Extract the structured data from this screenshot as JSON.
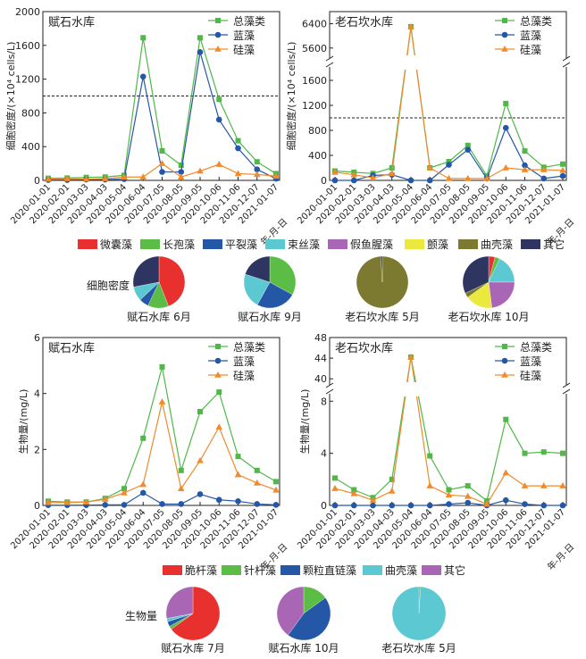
{
  "x_axis": {
    "dates": [
      "2020-01-01",
      "2020-02-01",
      "2020-03-03",
      "2020-04-03",
      "2020-05-04",
      "2020-06-04",
      "2020-07-05",
      "2020-08-05",
      "2020-09-05",
      "2020-10-06",
      "2020-11-06",
      "2020-12-07",
      "2021-01-07"
    ],
    "unit_label": "年-月-日"
  },
  "legend_top": [
    {
      "name": "微囊藻",
      "color": "#e8312f"
    },
    {
      "name": "长孢藻",
      "color": "#5bbd45"
    },
    {
      "name": "平裂藻",
      "color": "#2557a7"
    },
    {
      "name": "束丝藻",
      "color": "#5cc8d2"
    },
    {
      "name": "假鱼腥藻",
      "color": "#a866b4"
    },
    {
      "name": "颤藻",
      "color": "#ebe83e"
    },
    {
      "name": "曲壳藻",
      "color": "#7c7a30"
    },
    {
      "name": "其它",
      "color": "#2d3560"
    }
  ],
  "legend_bottom": [
    {
      "name": "脆杆藻",
      "color": "#e8312f"
    },
    {
      "name": "针杆藻",
      "color": "#5bbd45"
    },
    {
      "name": "颗粒直链藻",
      "color": "#2557a7"
    },
    {
      "name": "曲壳藻",
      "color": "#5cc8d2"
    },
    {
      "name": "其它",
      "color": "#a866b4"
    }
  ],
  "pie_row_labels": {
    "density": "细胞密度",
    "biomass": "生物量"
  },
  "chart_data": [
    {
      "type": "line",
      "title": "赋石水库",
      "ylabel": "细胞密度/(×10⁴ cells/L)",
      "ylim": [
        0,
        2000
      ],
      "yticks": [
        0,
        400,
        800,
        1200,
        1600,
        2000
      ],
      "threshold": 1000,
      "categories": [
        "2020-01-01",
        "2020-02-01",
        "2020-03-03",
        "2020-04-03",
        "2020-05-04",
        "2020-06-04",
        "2020-07-05",
        "2020-08-05",
        "2020-09-05",
        "2020-10-06",
        "2020-11-06",
        "2020-12-07",
        "2021-01-07"
      ],
      "series": [
        {
          "name": "总藻类",
          "color": "#4fb848",
          "marker": "square",
          "values": [
            25,
            28,
            35,
            40,
            60,
            1690,
            350,
            180,
            1690,
            960,
            470,
            220,
            80
          ]
        },
        {
          "name": "蓝藻",
          "color": "#2557a7",
          "marker": "circle",
          "values": [
            5,
            5,
            10,
            10,
            15,
            1230,
            100,
            100,
            1520,
            720,
            380,
            130,
            20
          ]
        },
        {
          "name": "硅藻",
          "color": "#f08a2c",
          "marker": "triangle",
          "values": [
            15,
            20,
            15,
            20,
            40,
            40,
            200,
            40,
            110,
            190,
            80,
            70,
            50
          ]
        }
      ]
    },
    {
      "type": "line",
      "title": "老石坎水库",
      "ylabel": "细胞密度/(×10⁴ cells/L)",
      "broken_axis": true,
      "ylim_lower": [
        0,
        1800
      ],
      "yticks_lower": [
        0,
        400,
        800,
        1200,
        1600
      ],
      "ylim_upper": [
        5300,
        6800
      ],
      "yticks_upper": [
        5600,
        6400
      ],
      "threshold": 1000,
      "categories": [
        "2020-01-01",
        "2020-02-01",
        "2020-03-03",
        "2020-04-03",
        "2020-05-04",
        "2020-06-04",
        "2020-07-05",
        "2020-08-05",
        "2020-09-05",
        "2020-10-06",
        "2020-11-06",
        "2020-12-07",
        "2021-01-07"
      ],
      "series": [
        {
          "name": "总藻类",
          "color": "#4fb848",
          "marker": "square",
          "values": [
            150,
            130,
            110,
            200,
            6300,
            200,
            300,
            560,
            70,
            1230,
            470,
            210,
            260
          ]
        },
        {
          "name": "蓝藻",
          "color": "#2557a7",
          "marker": "circle",
          "values": [
            0,
            0,
            80,
            90,
            0,
            0,
            250,
            490,
            30,
            840,
            240,
            30,
            70
          ]
        },
        {
          "name": "硅藻",
          "color": "#f08a2c",
          "marker": "triangle",
          "values": [
            130,
            90,
            40,
            110,
            6300,
            200,
            30,
            30,
            30,
            200,
            170,
            170,
            160
          ]
        }
      ]
    },
    {
      "type": "line",
      "title": "赋石水库",
      "ylabel": "生物量/(mg/L)",
      "ylim": [
        0,
        6
      ],
      "yticks": [
        0,
        2,
        4,
        6
      ],
      "categories": [
        "2020-01-01",
        "2020-02-01",
        "2020-03-03",
        "2020-04-03",
        "2020-05-04",
        "2020-06-04",
        "2020-07-05",
        "2020-08-05",
        "2020-09-05",
        "2020-10-06",
        "2020-11-06",
        "2020-12-07",
        "2021-01-07"
      ],
      "series": [
        {
          "name": "总藻类",
          "color": "#4fb848",
          "marker": "square",
          "values": [
            0.15,
            0.12,
            0.12,
            0.25,
            0.6,
            2.4,
            4.95,
            1.25,
            3.35,
            4.05,
            1.75,
            1.25,
            0.85
          ]
        },
        {
          "name": "蓝藻",
          "color": "#2557a7",
          "marker": "circle",
          "values": [
            0.01,
            0.01,
            0.01,
            0.02,
            0.02,
            0.45,
            0.05,
            0.05,
            0.4,
            0.2,
            0.15,
            0.05,
            0.02
          ]
        },
        {
          "name": "硅藻",
          "color": "#f08a2c",
          "marker": "triangle",
          "values": [
            0.1,
            0.1,
            0.12,
            0.22,
            0.45,
            0.75,
            3.7,
            0.6,
            1.6,
            2.8,
            1.1,
            0.8,
            0.55
          ]
        }
      ]
    },
    {
      "type": "line",
      "title": "老石坎水库",
      "ylabel": "生物量/(mg/L)",
      "broken_axis": true,
      "ylim_lower": [
        0,
        8.5
      ],
      "yticks_lower": [
        0,
        4,
        8
      ],
      "ylim_upper": [
        39,
        48
      ],
      "yticks_upper": [
        40,
        44,
        48
      ],
      "categories": [
        "2020-01-01",
        "2020-02-01",
        "2020-03-03",
        "2020-04-03",
        "2020-05-04",
        "2020-06-04",
        "2020-07-05",
        "2020-08-05",
        "2020-09-05",
        "2020-10-06",
        "2020-11-06",
        "2020-12-07",
        "2021-01-07"
      ],
      "series": [
        {
          "name": "总藻类",
          "color": "#4fb848",
          "marker": "square",
          "values": [
            2.1,
            1.2,
            0.6,
            2.0,
            44.2,
            3.8,
            1.2,
            1.5,
            0.35,
            6.6,
            4.0,
            4.1,
            4.0
          ]
        },
        {
          "name": "蓝藻",
          "color": "#2557a7",
          "marker": "circle",
          "values": [
            0.0,
            0.0,
            0.0,
            0.0,
            0.0,
            0.0,
            0.1,
            0.2,
            0.0,
            0.4,
            0.1,
            0.0,
            0.0
          ]
        },
        {
          "name": "硅藻",
          "color": "#f08a2c",
          "marker": "triangle",
          "values": [
            1.3,
            0.9,
            0.4,
            1.1,
            44.2,
            1.5,
            0.8,
            0.7,
            0.1,
            2.5,
            1.5,
            1.5,
            1.5
          ]
        }
      ]
    },
    {
      "type": "pie",
      "group": "density",
      "pies": [
        {
          "label": "赋石水库 6月",
          "slices": [
            {
              "name": "微囊藻",
              "value": 44
            },
            {
              "name": "长孢藻",
              "value": 13
            },
            {
              "name": "平裂藻",
              "value": 6
            },
            {
              "name": "束丝藻",
              "value": 9
            },
            {
              "name": "其它",
              "value": 28
            }
          ]
        },
        {
          "label": "赋石水库 9月",
          "slices": [
            {
              "name": "长孢藻",
              "value": 33
            },
            {
              "name": "平裂藻",
              "value": 25
            },
            {
              "name": "束丝藻",
              "value": 22
            },
            {
              "name": "其它",
              "value": 20
            }
          ]
        },
        {
          "label": "老石坎水库 5月",
          "slices": [
            {
              "name": "曲壳藻",
              "value": 99
            },
            {
              "name": "其它",
              "value": 1
            }
          ]
        },
        {
          "label": "老石坎水库 10月",
          "slices": [
            {
              "name": "微囊藻",
              "value": 4
            },
            {
              "name": "长孢藻",
              "value": 3
            },
            {
              "name": "束丝藻",
              "value": 18
            },
            {
              "name": "假鱼腥藻",
              "value": 23
            },
            {
              "name": "颤藻",
              "value": 17
            },
            {
              "name": "曲壳藻",
              "value": 3
            },
            {
              "name": "其它",
              "value": 32
            }
          ]
        }
      ]
    },
    {
      "type": "pie",
      "group": "biomass",
      "pies": [
        {
          "label": "赋石水库 7月",
          "slices": [
            {
              "name": "脆杆藻",
              "value": 65
            },
            {
              "name": "针杆藻",
              "value": 2
            },
            {
              "name": "颗粒直链藻",
              "value": 3
            },
            {
              "name": "曲壳藻",
              "value": 2
            },
            {
              "name": "其它",
              "value": 28
            }
          ]
        },
        {
          "label": "赋石水库 10月",
          "slices": [
            {
              "name": "针杆藻",
              "value": 15
            },
            {
              "name": "颗粒直链藻",
              "value": 45
            },
            {
              "name": "其它",
              "value": 40
            }
          ]
        },
        {
          "label": "老石坎水库 5月",
          "slices": [
            {
              "name": "针杆藻",
              "value": 1
            },
            {
              "name": "曲壳藻",
              "value": 99
            }
          ]
        }
      ]
    }
  ]
}
